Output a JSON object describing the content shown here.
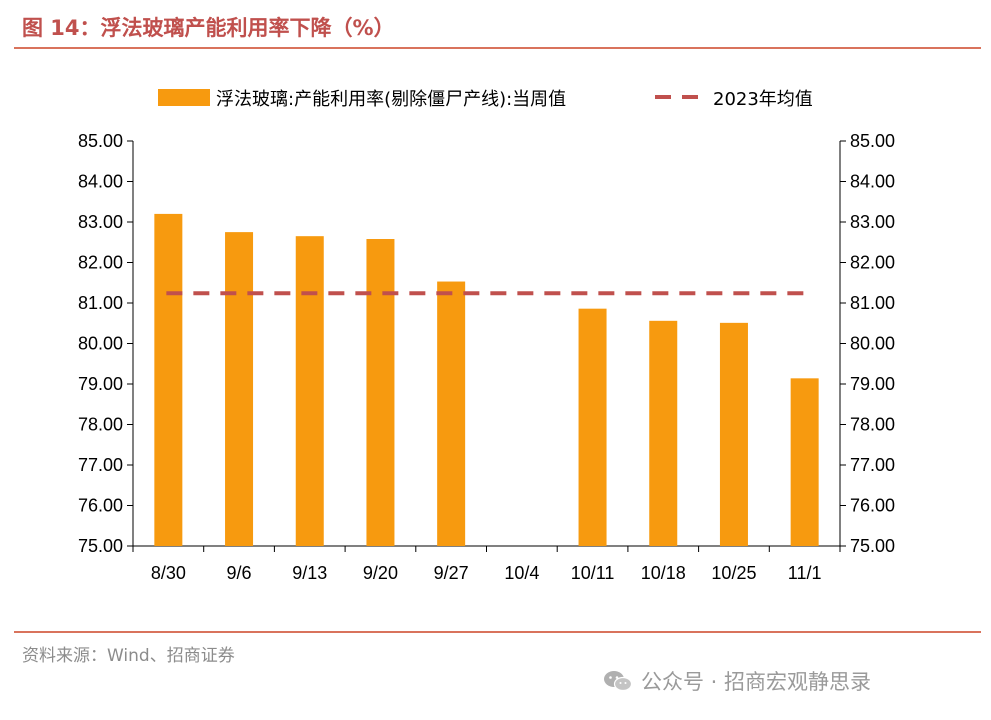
{
  "header": {
    "title": "图 14：浮法玻璃产能利用率下降（%）"
  },
  "footer": {
    "source": "资料来源：Wind、招商证券",
    "watermark": "公众号 · 招商宏观静思录"
  },
  "colors": {
    "bar": "#f79a0f",
    "avg_line": "#c0504d",
    "title": "#c0504d",
    "rule": "#d9735c"
  },
  "icons": {
    "watermark_icon": "wechat-icon"
  },
  "chart_data": {
    "type": "bar",
    "categories": [
      "8/30",
      "9/6",
      "9/13",
      "9/20",
      "9/27",
      "10/4",
      "10/11",
      "10/18",
      "10/25",
      "11/1"
    ],
    "series": [
      {
        "name": "浮法玻璃:产能利用率(剔除僵尸产线):当周值",
        "type": "bar",
        "values": [
          83.2,
          82.75,
          82.65,
          82.58,
          81.53,
          null,
          80.86,
          80.56,
          80.51,
          79.14
        ]
      },
      {
        "name": "2023年均值",
        "type": "line-dashed",
        "values": [
          81.24,
          81.24,
          81.24,
          81.24,
          81.24,
          81.24,
          81.24,
          81.24,
          81.24,
          81.24
        ]
      }
    ],
    "ylim": [
      75,
      85
    ],
    "y_ticks": [
      "75.00",
      "76.00",
      "77.00",
      "78.00",
      "79.00",
      "80.00",
      "81.00",
      "82.00",
      "83.00",
      "84.00",
      "85.00"
    ],
    "y_axis_both_sides": true,
    "grid": false,
    "legend_position": "top"
  }
}
